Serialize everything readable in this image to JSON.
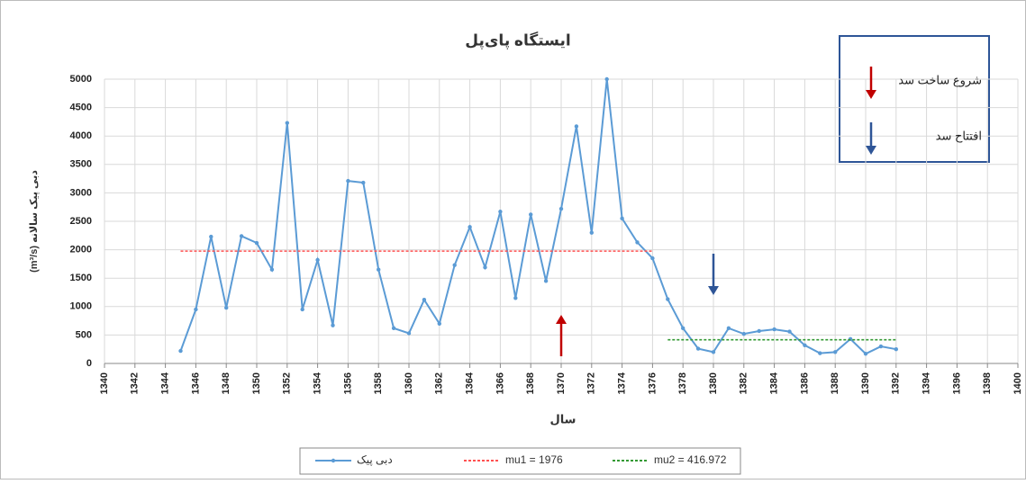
{
  "chart_data": {
    "type": "line",
    "title": "ایستگاه پای‌پل",
    "x_label": "سال",
    "y_label": "(m³/s) دبی پیک سالانه",
    "xlim": [
      1340,
      1400
    ],
    "xticks": [
      1340,
      1342,
      1344,
      1346,
      1348,
      1350,
      1352,
      1354,
      1356,
      1358,
      1360,
      1362,
      1364,
      1366,
      1368,
      1370,
      1372,
      1374,
      1376,
      1378,
      1380,
      1382,
      1384,
      1386,
      1388,
      1390,
      1392,
      1394,
      1396,
      1398,
      1400
    ],
    "ylim": [
      0,
      5000
    ],
    "yticks": [
      0,
      500,
      1000,
      1500,
      2000,
      2500,
      3000,
      3500,
      4000,
      4500,
      5000
    ],
    "grid": true,
    "series": [
      {
        "name": "دبی پیک",
        "color": "#5b9bd5",
        "style": "solid",
        "markers": true,
        "x": [
          1345,
          1346,
          1347,
          1348,
          1349,
          1350,
          1351,
          1352,
          1353,
          1354,
          1355,
          1356,
          1357,
          1358,
          1359,
          1360,
          1361,
          1362,
          1363,
          1364,
          1365,
          1366,
          1367,
          1368,
          1369,
          1370,
          1371,
          1372,
          1373,
          1374,
          1375,
          1376,
          1377,
          1378,
          1379,
          1380,
          1381,
          1382,
          1383,
          1384,
          1385,
          1386,
          1387,
          1388,
          1389,
          1390,
          1391,
          1392
        ],
        "values": [
          220,
          950,
          2230,
          980,
          2240,
          2120,
          1650,
          4230,
          950,
          1820,
          670,
          3210,
          3180,
          1650,
          620,
          530,
          1120,
          700,
          1730,
          2400,
          1690,
          2670,
          1150,
          2620,
          1450,
          2720,
          4170,
          2300,
          5000,
          2550,
          2130,
          1850,
          1130,
          620,
          260,
          200,
          620,
          520,
          570,
          600,
          560,
          320,
          180,
          200,
          430,
          170,
          300,
          250
        ]
      },
      {
        "name": "mu1 = 1976",
        "color": "#ff5050",
        "style": "dotted",
        "markers": false,
        "x": [
          1345,
          1376
        ],
        "values": [
          1976,
          1976
        ]
      },
      {
        "name": "mu2 = 416.972",
        "color": "#339933",
        "style": "dotted",
        "markers": false,
        "x": [
          1377,
          1392
        ],
        "values": [
          416.972,
          416.972
        ]
      }
    ],
    "annotations": [
      {
        "text": "شروع ساخت سد",
        "x": 1370,
        "color": "#c00000",
        "direction": "up"
      },
      {
        "text": "افتتاح سد",
        "x": 1380,
        "color": "#2e5597",
        "direction": "down"
      }
    ]
  }
}
